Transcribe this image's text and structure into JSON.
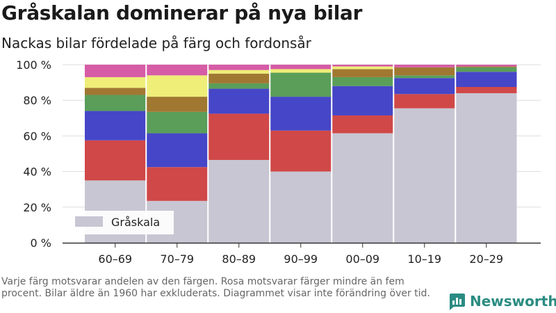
{
  "title": "Gråskalan dominerar på nya bilar",
  "subtitle": "Nackas bilar fördelade på färg och fordonsår",
  "footnote": "Varje färg motsvarar andelen av den färgen. Rosa motsvarar färger mindre än fem procent. Bilar äldre än 1960 har exkluderats. Diagrammet visar inte förändring över tid.",
  "brand": {
    "name": "Newsworthy",
    "icon": "newsworthy-logo-icon",
    "color": "#2a8c82"
  },
  "chart_data": {
    "type": "bar",
    "stacked": true,
    "categories": [
      "60–69",
      "70–79",
      "80–89",
      "90–99",
      "00–09",
      "10–19",
      "20–29"
    ],
    "ylim": [
      0,
      100
    ],
    "yticks": [
      0,
      20,
      40,
      60,
      80,
      100
    ],
    "ytick_labels": [
      "0 %",
      "20 %",
      "40 %",
      "60 %",
      "80 %",
      "100 %"
    ],
    "grid": true,
    "legend": {
      "position": "bottom-left",
      "entries": [
        "Gråskala"
      ]
    },
    "series": [
      {
        "name": "Gråskala",
        "color": "#c8c6d2",
        "values": [
          35,
          23.5,
          46.5,
          40,
          61.5,
          75.5,
          84
        ]
      },
      {
        "color": "#d04848",
        "values": [
          22.5,
          19,
          26,
          23,
          10,
          8,
          3.5
        ]
      },
      {
        "color": "#4646c8",
        "values": [
          16.5,
          19,
          14,
          19,
          16.5,
          9,
          8.5
        ]
      },
      {
        "color": "#5a9e5a",
        "values": [
          9,
          12,
          3,
          13.5,
          5,
          1.5,
          2.5
        ]
      },
      {
        "color": "#a07832",
        "values": [
          4,
          8.5,
          5.5,
          0,
          4.5,
          4.5,
          0.5
        ]
      },
      {
        "color": "#eeee78",
        "values": [
          6,
          12,
          2,
          2,
          1.5,
          0,
          0
        ]
      },
      {
        "color": "#d65ca6",
        "values": [
          7,
          6,
          3,
          2.5,
          1,
          1.5,
          1
        ]
      }
    ]
  }
}
